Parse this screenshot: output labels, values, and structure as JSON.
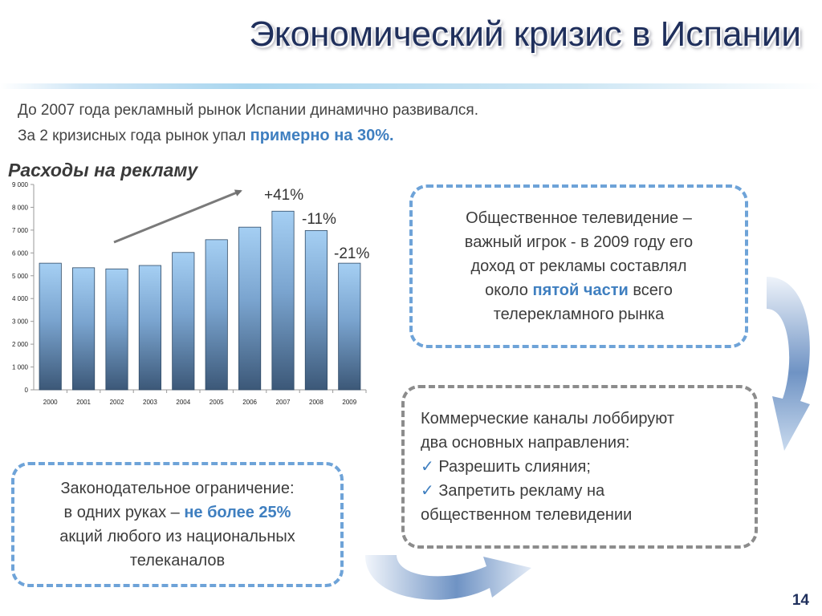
{
  "slide": {
    "title": "Экономический кризис в Испании",
    "intro_line1": "До 2007 года рекламный рынок Испании динамично развивался.",
    "intro_line2_prefix": "За 2 кризисных года рынок упал ",
    "intro_line2_highlight": "примерно на 30%.",
    "page_number": "14"
  },
  "chart_data": {
    "type": "bar",
    "title": "Расходы на рекламу",
    "categories": [
      "2000",
      "2001",
      "2002",
      "2003",
      "2004",
      "2005",
      "2006",
      "2007",
      "2008",
      "2009"
    ],
    "values": [
      5550,
      5350,
      5300,
      5450,
      6020,
      6580,
      7130,
      7830,
      6980,
      5550
    ],
    "ylim": [
      0,
      9000
    ],
    "yticks": [
      "0",
      "1 000",
      "2 000",
      "3 000",
      "4 000",
      "5 000",
      "6 000",
      "7 000",
      "8 000",
      "9 000"
    ],
    "annotations": [
      "+41%",
      "-11%",
      "-21%"
    ],
    "grid": false,
    "legend": "none"
  },
  "boxes": {
    "public_tv": {
      "l1": "Общественное телевидение –",
      "l2": "важный игрок - в 2009 году его",
      "l3": "доход от рекламы составлял",
      "l4_prefix": "около ",
      "l4_highlight": "пятой части",
      "l4_suffix": " всего",
      "l5": "телерекламного рынка"
    },
    "commercial": {
      "l1": "Коммерческие каналы лоббируют",
      "l2": "два основных направления:",
      "check": "✓",
      "item1": " Разрешить слияния;",
      "item2a": " Запретить рекламу на",
      "item2b": "общественном телевидении"
    },
    "legislation": {
      "l1": "Законодательное ограничение:",
      "l2_prefix": "в одних руках – ",
      "l2_highlight": "не более 25%",
      "l3": "акций любого из национальных",
      "l4": "телеканалов"
    }
  },
  "colors": {
    "title": "#1f2f5c",
    "accent": "#3f7fc0",
    "box_blue_border": "#6ea3d8",
    "box_gray_border": "#8c8c8c",
    "bar_top": "#9fcbf2",
    "bar_bottom": "#3e5a7c"
  }
}
